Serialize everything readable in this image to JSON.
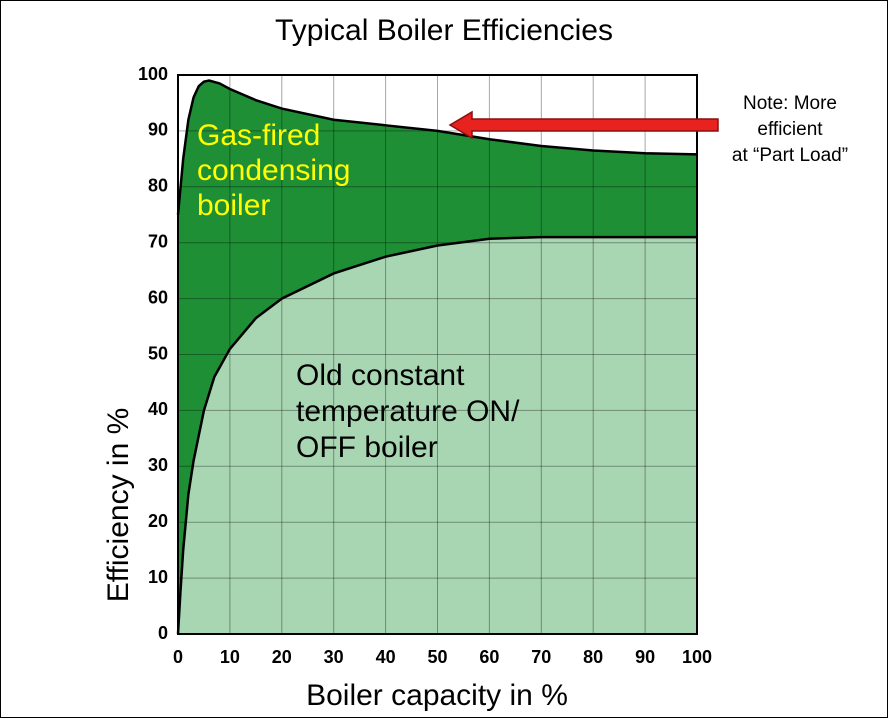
{
  "chart_data": {
    "type": "area",
    "title": "Typical Boiler Efficiencies",
    "xlabel": "Boiler capacity in %",
    "ylabel": "Efficiency in %",
    "xlim": [
      0,
      100
    ],
    "ylim": [
      0,
      100
    ],
    "xticks": [
      0,
      10,
      20,
      30,
      40,
      50,
      60,
      70,
      80,
      90,
      100
    ],
    "yticks": [
      0,
      10,
      20,
      30,
      40,
      50,
      60,
      70,
      80,
      90,
      100
    ],
    "grid": true,
    "series": [
      {
        "color": "#1f8f36",
        "x": [
          0,
          1,
          2,
          3,
          4,
          5,
          6,
          8,
          10,
          15,
          20,
          30,
          40,
          50,
          60,
          70,
          80,
          90,
          100
        ],
        "values": [
          75,
          85,
          92,
          96,
          98,
          98.8,
          99,
          98.5,
          97.5,
          95.5,
          94,
          92,
          91,
          90,
          88.5,
          87.3,
          86.5,
          86,
          85.8
        ]
      },
      {
        "color": "#a9d6b2",
        "x": [
          0,
          0.5,
          1,
          2,
          3,
          5,
          7,
          10,
          15,
          20,
          30,
          40,
          50,
          60,
          70,
          80,
          90,
          100
        ],
        "values": [
          0,
          8,
          15,
          25,
          31,
          40,
          46,
          51,
          56.5,
          60,
          64.5,
          67.5,
          69.5,
          70.7,
          71,
          71,
          71,
          71
        ]
      }
    ],
    "annotations": [
      {
        "lines": [
          "Gas-fired",
          "condensing",
          "boiler"
        ],
        "color": "#ffff00"
      },
      {
        "lines": [
          "Old constant",
          "temperature ON/",
          "OFF boiler"
        ],
        "color": "#000000"
      },
      {
        "lines": [
          "Note: More",
          "efficient",
          "at “Part Load”"
        ],
        "color": "#000000",
        "arrow_color": "#e8221f"
      }
    ]
  }
}
